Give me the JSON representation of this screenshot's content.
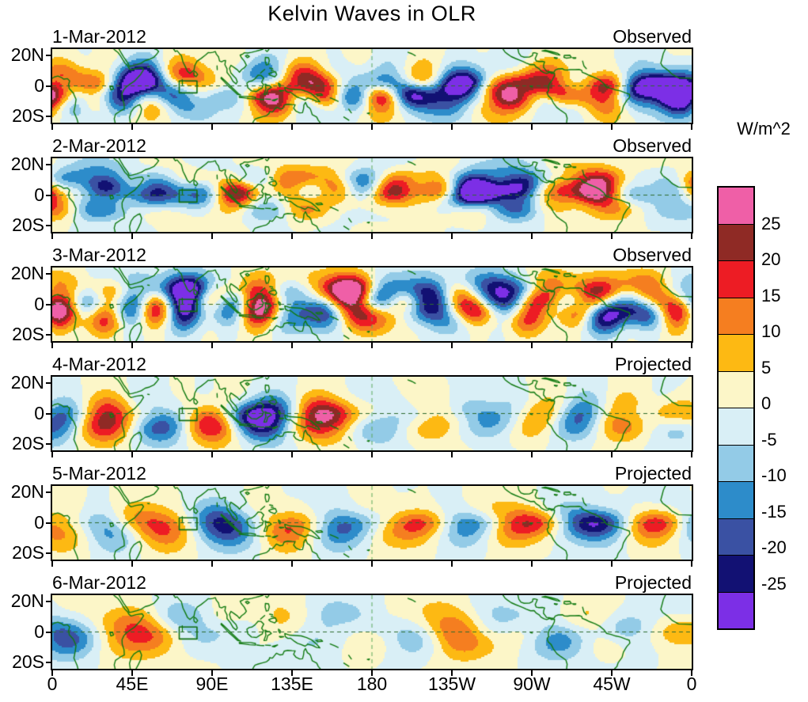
{
  "title": "Kelvin Waves in OLR",
  "colorbar": {
    "units_label": "W/m^2",
    "tick_labels": [
      "25",
      "20",
      "15",
      "10",
      "5",
      "0",
      "-5",
      "-10",
      "-15",
      "-20",
      "-25"
    ],
    "segment_colors_top_to_bottom": [
      "#ef5fa7",
      "#8f2a25",
      "#ed1c24",
      "#f57e20",
      "#fdb913",
      "#fcf6c8",
      "#d9eff6",
      "#93cbe7",
      "#2d8cca",
      "#3a51a3",
      "#121173",
      "#7c2fe6"
    ]
  },
  "axes": {
    "y_tick_labels": [
      "20N",
      "0",
      "20S"
    ],
    "x_tick_labels": [
      "0",
      "45E",
      "90E",
      "135E",
      "180",
      "135W",
      "90W",
      "45W",
      "0"
    ]
  },
  "panels": [
    {
      "date": "1-Mar-2012",
      "status": "Observed"
    },
    {
      "date": "2-Mar-2012",
      "status": "Observed"
    },
    {
      "date": "3-Mar-2012",
      "status": "Observed"
    },
    {
      "date": "4-Mar-2012",
      "status": "Projected"
    },
    {
      "date": "5-Mar-2012",
      "status": "Projected"
    },
    {
      "date": "6-Mar-2012",
      "status": "Projected"
    }
  ],
  "chart_data": {
    "type": "heatmap",
    "title": "Kelvin Waves in OLR",
    "units": "W/m^2",
    "lon_range_deg": [
      0,
      360
    ],
    "lat_range_deg": [
      -24,
      24
    ],
    "x_tick_labels": [
      "0",
      "45E",
      "90E",
      "135E",
      "180",
      "135W",
      "90W",
      "45W",
      "0"
    ],
    "y_tick_labels": [
      "20N",
      "0",
      "20S"
    ],
    "contour_levels": [
      -25,
      -20,
      -15,
      -10,
      -5,
      0,
      5,
      10,
      15,
      20,
      25
    ],
    "palette_low_to_high": [
      "#7c2fe6",
      "#121173",
      "#3a51a3",
      "#2d8cca",
      "#93cbe7",
      "#d9eff6",
      "#fcf6c8",
      "#fdb913",
      "#f57e20",
      "#ed1c24",
      "#8f2a25",
      "#ef5fa7"
    ],
    "legend_position": "right",
    "panels": [
      {
        "date": "1-Mar-2012",
        "kind": "Observed",
        "approx_peak_anomaly_wm2": 32
      },
      {
        "date": "2-Mar-2012",
        "kind": "Observed",
        "approx_peak_anomaly_wm2": 30
      },
      {
        "date": "3-Mar-2012",
        "kind": "Observed",
        "approx_peak_anomaly_wm2": 29
      },
      {
        "date": "4-Mar-2012",
        "kind": "Projected",
        "approx_peak_anomaly_wm2": 26
      },
      {
        "date": "5-Mar-2012",
        "kind": "Projected",
        "approx_peak_anomaly_wm2": 22
      },
      {
        "date": "6-Mar-2012",
        "kind": "Projected",
        "approx_peak_anomaly_wm2": 17
      }
    ],
    "features": [
      "green coastlines drawn over each map",
      "dashed line along the equator",
      "dashed meridian at 180",
      "small green index box near 75E on the equator in every panel"
    ],
    "notes": "Six equatorial-strip maps (20S-20N, 0-360E) of Kelvin-wave-filtered OLR anomalies, filled every 5 W/m^2 from -25 to 25. Observed fields (1-3 Mar 2012) show strong alternating positive (red/orange) and negative (blue/purple) anomalies; projected fields (4-6 Mar 2012) weaken progressively."
  }
}
